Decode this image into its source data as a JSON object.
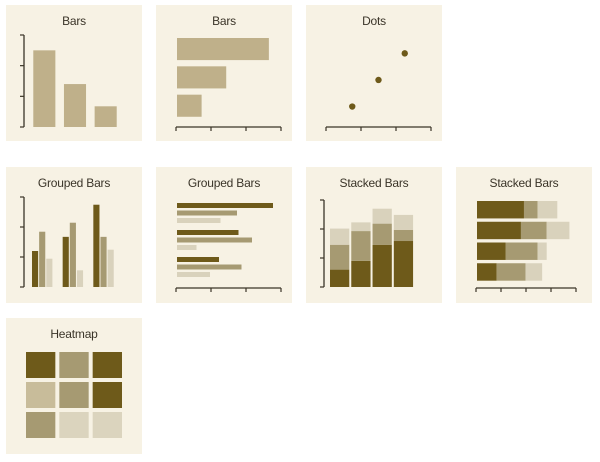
{
  "colors": {
    "card_bg": "#f7f2e4",
    "axis": "#3b3528",
    "dark": "#6e5a1a",
    "mid": "#a69a72",
    "light": "#d9d2bc",
    "bar": "#bfb08a",
    "heat": [
      "#6e5a1a",
      "#a69a72",
      "#c8bc9a",
      "#dbd4be"
    ]
  },
  "chart_data": [
    {
      "id": "bars-vertical",
      "type": "bar",
      "orientation": "vertical",
      "title": "Bars",
      "categories": [
        "",
        "",
        ""
      ],
      "values": [
        5,
        2.8,
        1.35
      ],
      "ylim": [
        0,
        6
      ],
      "ytick_count": 4,
      "xlabel": "",
      "ylabel": ""
    },
    {
      "id": "bars-horizontal",
      "type": "bar",
      "orientation": "horizontal",
      "title": "Bars",
      "categories": [
        "",
        "",
        ""
      ],
      "values": [
        2.8,
        1.5,
        0.75
      ],
      "xlim": [
        0,
        3.2
      ],
      "xtick_count": 4,
      "xlabel": "",
      "ylabel": ""
    },
    {
      "id": "dots",
      "type": "scatter",
      "title": "Dots",
      "points": [
        {
          "x": 1,
          "y": 1
        },
        {
          "x": 2,
          "y": 2.3
        },
        {
          "x": 3,
          "y": 3.6
        }
      ],
      "xlim": [
        0,
        4
      ],
      "ylim": [
        0,
        4.4
      ],
      "xtick_count": 4,
      "xlabel": "",
      "ylabel": ""
    },
    {
      "id": "grouped-vertical",
      "type": "bar",
      "orientation": "vertical",
      "mode": "grouped",
      "title": "Grouped Bars",
      "categories": [
        "",
        "",
        ""
      ],
      "series": [
        {
          "values": [
            1.4,
            1.95,
            3.2
          ],
          "tone": "dark"
        },
        {
          "values": [
            2.15,
            2.5,
            1.95
          ],
          "tone": "mid"
        },
        {
          "values": [
            1.1,
            0.65,
            1.45
          ],
          "tone": "light"
        }
      ],
      "ylim": [
        0,
        3.5
      ],
      "ytick_count": 4,
      "xlabel": "",
      "ylabel": ""
    },
    {
      "id": "grouped-horizontal",
      "type": "bar",
      "orientation": "horizontal",
      "mode": "grouped",
      "title": "Grouped Bars",
      "categories": [
        "",
        "",
        ""
      ],
      "series": [
        {
          "values": [
            3.2,
            2.05,
            1.4
          ],
          "tone": "dark"
        },
        {
          "values": [
            2.0,
            2.5,
            2.15
          ],
          "tone": "mid"
        },
        {
          "values": [
            1.45,
            0.65,
            1.1
          ],
          "tone": "light"
        }
      ],
      "xlim": [
        0,
        3.5
      ],
      "xtick_count": 4,
      "xlabel": "",
      "ylabel": ""
    },
    {
      "id": "stacked-vertical",
      "type": "bar",
      "orientation": "vertical",
      "mode": "stacked",
      "title": "Stacked Bars",
      "categories": [
        "",
        "",
        "",
        ""
      ],
      "series": [
        {
          "values": [
            0.7,
            1.05,
            1.7,
            1.85
          ],
          "tone": "dark"
        },
        {
          "values": [
            1.0,
            1.2,
            0.85,
            0.45
          ],
          "tone": "mid"
        },
        {
          "values": [
            0.65,
            0.35,
            0.6,
            0.6
          ],
          "tone": "light"
        }
      ],
      "ylim": [
        0,
        3.5
      ],
      "ytick_count": 4,
      "xlabel": "",
      "ylabel": ""
    },
    {
      "id": "stacked-horizontal",
      "type": "bar",
      "orientation": "horizontal",
      "mode": "stacked",
      "title": "Stacked Bars",
      "categories": [
        "",
        "",
        "",
        ""
      ],
      "series": [
        {
          "values": [
            1.55,
            1.45,
            0.95,
            0.65
          ],
          "tone": "dark"
        },
        {
          "values": [
            0.45,
            0.85,
            1.05,
            0.95
          ],
          "tone": "mid"
        },
        {
          "values": [
            0.65,
            0.75,
            0.3,
            0.55
          ],
          "tone": "light"
        }
      ],
      "xlim": [
        0,
        3.3
      ],
      "xtick_count": 5,
      "xlabel": "",
      "ylabel": ""
    },
    {
      "id": "heatmap",
      "type": "heatmap",
      "title": "Heatmap",
      "rows": 3,
      "cols": 3,
      "values": [
        [
          3,
          2,
          3
        ],
        [
          1,
          2,
          3
        ],
        [
          2,
          0,
          0
        ]
      ],
      "xlabel": "",
      "ylabel": ""
    }
  ]
}
